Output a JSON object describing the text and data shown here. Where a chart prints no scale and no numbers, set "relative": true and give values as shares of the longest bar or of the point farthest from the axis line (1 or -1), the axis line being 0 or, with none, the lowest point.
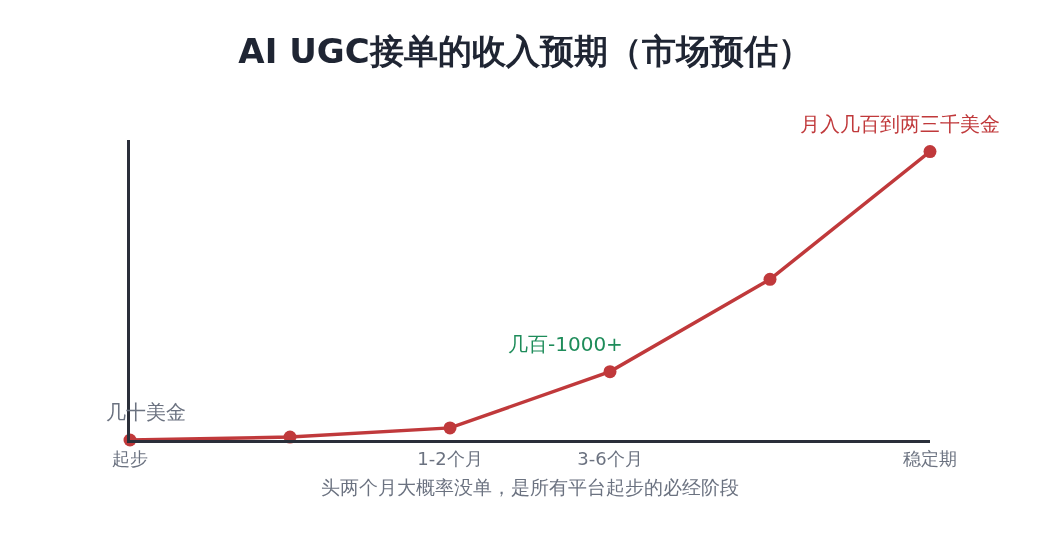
{
  "chart_data": {
    "type": "line",
    "title": "AI UGC接单的收入预期（市场预估）",
    "categories": [
      "起步",
      null,
      "1-2个月",
      "3-6个月",
      null,
      "稳定期"
    ],
    "series": [
      {
        "color": "#c0393b",
        "values": [
          0,
          0.01,
          0.042,
          0.237,
          0.557,
          1
        ]
      }
    ],
    "relative": true,
    "marker": "circle",
    "line_style": "solid",
    "annotations": [
      {
        "text": "几十美金",
        "x": "起步",
        "y": 0
      },
      {
        "text": "几百-1000+",
        "x": "3-6个月",
        "y": 0.237
      },
      {
        "text": "月入几百到两三千美金",
        "x": "稳定期",
        "y": 1
      },
      "头两个月大概率没单，是所有平台起步的必经阶段"
    ]
  }
}
